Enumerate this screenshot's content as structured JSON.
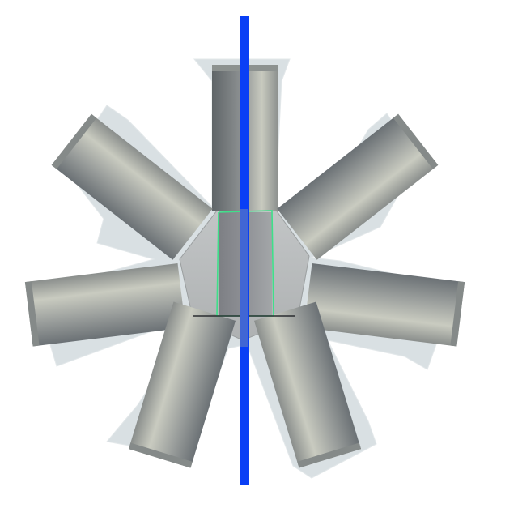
{
  "scene": {
    "background": "#ffffff",
    "axis_color": "#0a3ff5",
    "selection_color": "#3ee08a",
    "shell_color": "#cfd6dc",
    "cylinder_dark": "#6e7478",
    "cylinder_light": "#c4c6bc",
    "hub_color": "#b9bcbc",
    "arm_count": 7
  }
}
